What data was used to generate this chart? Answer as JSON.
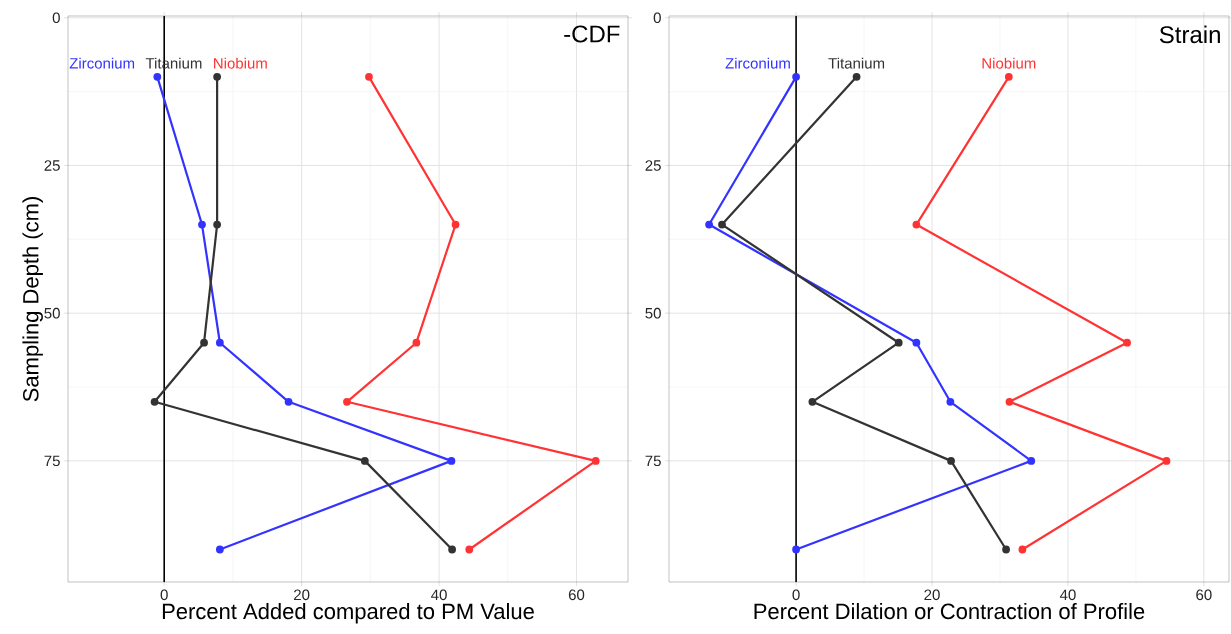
{
  "chart_data": [
    {
      "type": "line",
      "xlabel": "Percent Added compared to PM Value",
      "ylabel": "Sampling Depth (cm)",
      "annotations": [
        "-CDF"
      ],
      "xlim": [
        -14,
        67.5
      ],
      "xticks": [
        0,
        20,
        40,
        60
      ],
      "ylim": [
        95.5,
        -0.3
      ],
      "yticks": [
        0,
        25,
        50,
        75
      ],
      "grid": true,
      "marker": "circle",
      "ref_lines": [
        {
          "axis": "x",
          "value": 0,
          "color": "#000000"
        }
      ],
      "series": [
        {
          "name": "Zirconium",
          "color": "#3333ff",
          "x": [
            -1.0,
            5.5,
            8.1,
            18.1,
            41.8,
            8.1
          ],
          "values": [
            10,
            35,
            55,
            65,
            75,
            90
          ]
        },
        {
          "name": "Titanium",
          "color": "#333333",
          "x": [
            7.7,
            7.7,
            5.8,
            -1.4,
            29.2,
            41.9
          ],
          "values": [
            10,
            35,
            55,
            65,
            75,
            90
          ]
        },
        {
          "name": "Niobium",
          "color": "#ff3333",
          "x": [
            29.8,
            42.4,
            36.7,
            26.6,
            62.8,
            44.4
          ],
          "values": [
            10,
            35,
            55,
            65,
            75,
            90
          ]
        }
      ]
    },
    {
      "type": "line",
      "xlabel": "Percent Dilation or Contraction of Profile",
      "annotations": [
        "Strain"
      ],
      "xlim": [
        -18.7,
        63.7
      ],
      "xticks": [
        0,
        20,
        40,
        60
      ],
      "ylim": [
        95.5,
        -0.3
      ],
      "yticks": [
        0,
        25,
        50,
        75
      ],
      "grid": true,
      "marker": "circle",
      "ref_lines": [
        {
          "axis": "x",
          "value": 0,
          "color": "#000000"
        }
      ],
      "series": [
        {
          "name": "Zirconium",
          "color": "#3333ff",
          "x": [
            0,
            -12.8,
            17.7,
            22.7,
            34.6,
            0
          ],
          "values": [
            10,
            35,
            55,
            65,
            75,
            90
          ]
        },
        {
          "name": "Titanium",
          "color": "#333333",
          "x": [
            8.9,
            -10.9,
            15.1,
            2.4,
            22.8,
            30.9
          ],
          "values": [
            10,
            35,
            55,
            65,
            75,
            90
          ]
        },
        {
          "name": "Niobium",
          "color": "#ff3333",
          "x": [
            31.3,
            17.7,
            48.7,
            31.4,
            54.5,
            33.3
          ],
          "values": [
            10,
            35,
            55,
            65,
            75,
            90
          ]
        }
      ]
    }
  ]
}
